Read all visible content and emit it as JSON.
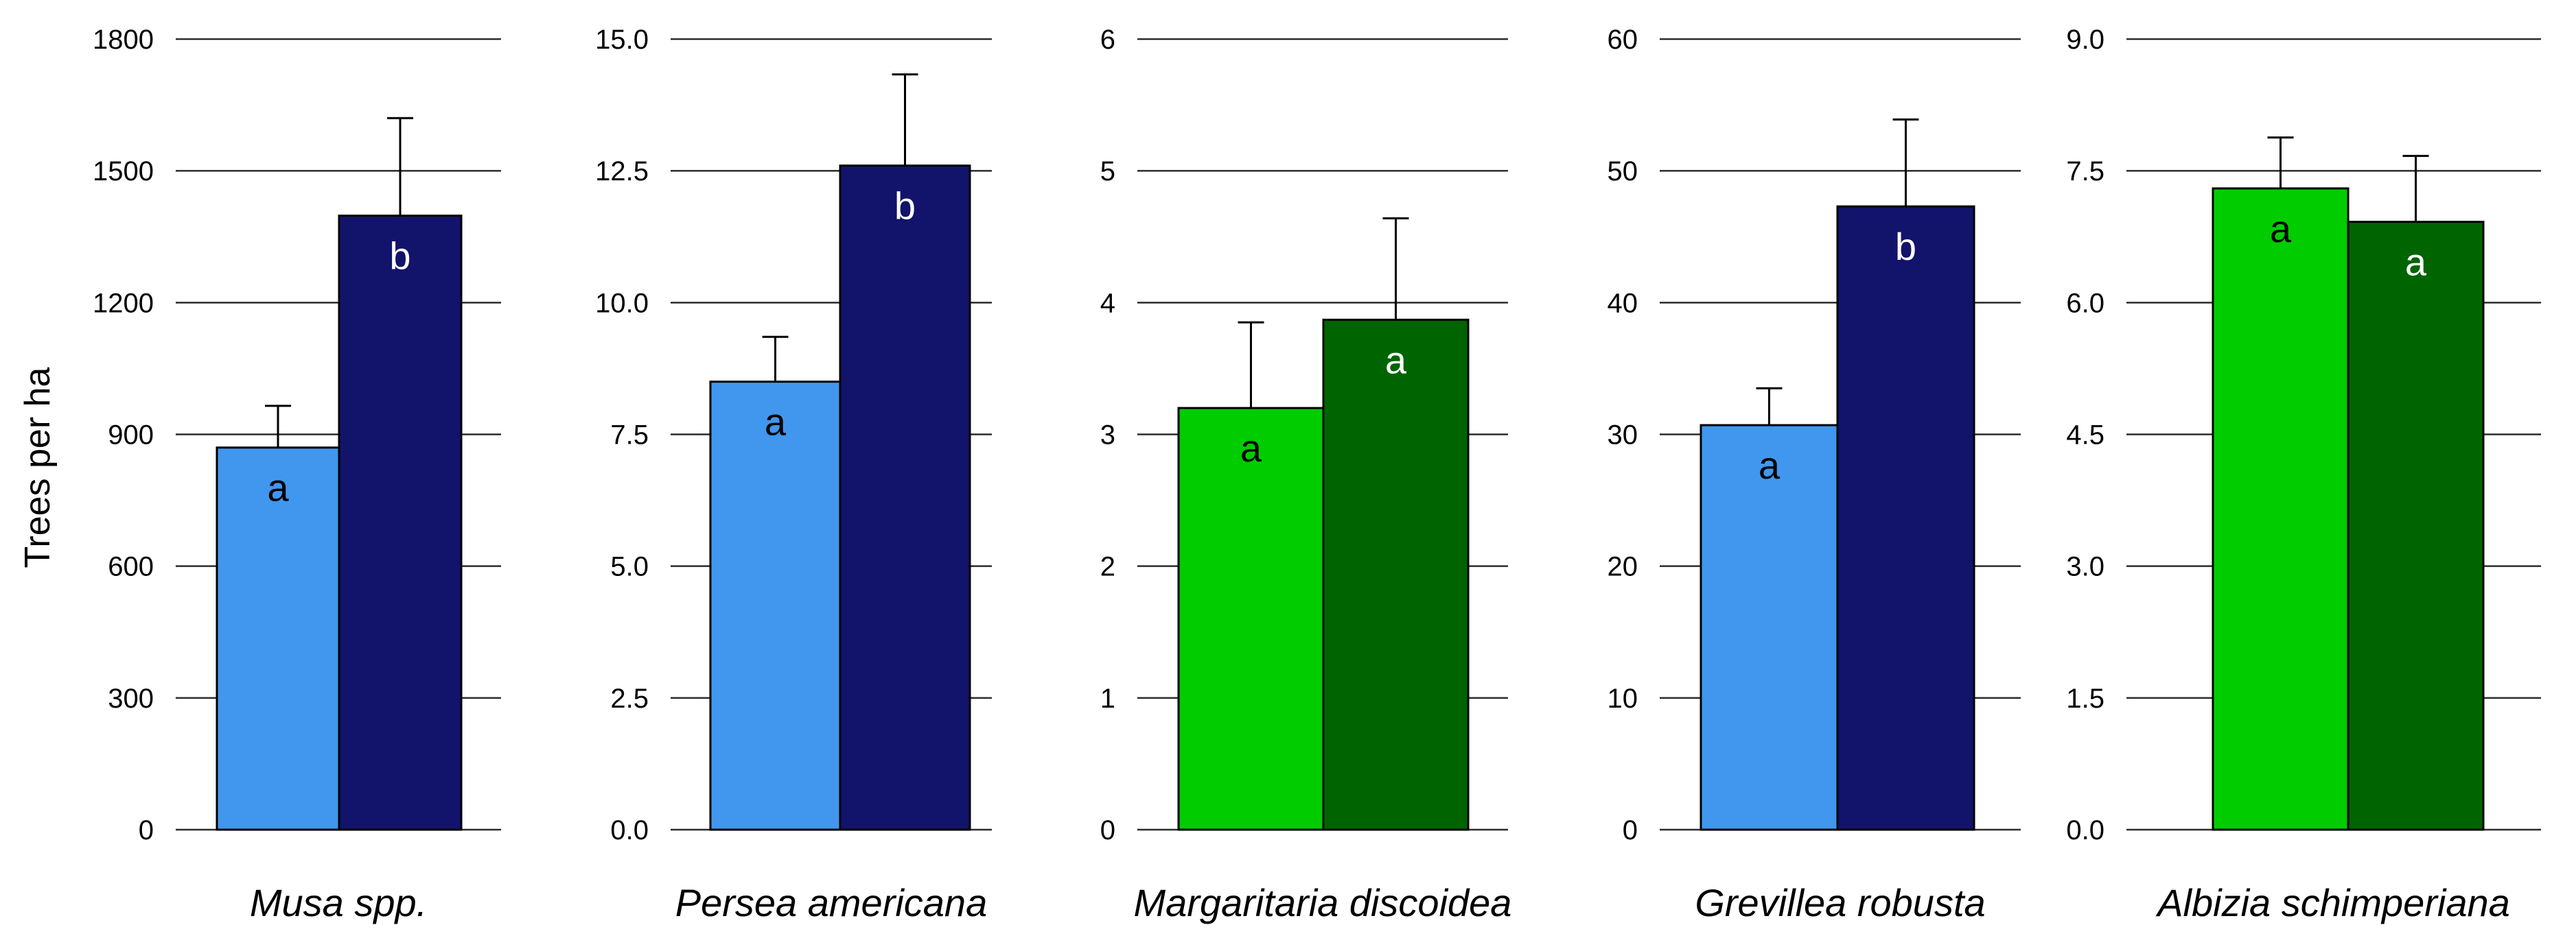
{
  "chart_data": [
    {
      "type": "bar",
      "title": "Musa spp.",
      "ylabel": "Trees per ha",
      "xlabel": "",
      "ylim": [
        0,
        1800
      ],
      "yticks": [
        "0",
        "300",
        "600",
        "900",
        "1200",
        "1500",
        "1800"
      ],
      "tick_values": [
        0,
        300,
        600,
        900,
        1200,
        1500,
        1800
      ],
      "grid": true,
      "bars": [
        {
          "value": 870,
          "error": 95,
          "color": "#4196ee",
          "label": "a",
          "label_color": "#000000"
        },
        {
          "value": 1398,
          "error": 222,
          "color": "#12136b",
          "label": "b",
          "label_color": "#ffffff"
        }
      ]
    },
    {
      "type": "bar",
      "title": "Persea americana",
      "ylabel": "",
      "xlabel": "",
      "ylim": [
        0,
        15
      ],
      "yticks": [
        "0.0",
        "2.5",
        "5.0",
        "7.5",
        "10.0",
        "12.5",
        "15.0"
      ],
      "tick_values": [
        0,
        2.5,
        5,
        7.5,
        10,
        12.5,
        15
      ],
      "grid": true,
      "bars": [
        {
          "value": 8.5,
          "error": 0.85,
          "color": "#4196ee",
          "label": "a",
          "label_color": "#000000"
        },
        {
          "value": 12.6,
          "error": 1.73,
          "color": "#12136b",
          "label": "b",
          "label_color": "#ffffff"
        }
      ]
    },
    {
      "type": "bar",
      "title": "Margaritaria discoidea",
      "ylabel": "",
      "xlabel": "",
      "ylim": [
        0,
        6
      ],
      "yticks": [
        "0",
        "1",
        "2",
        "3",
        "4",
        "5",
        "6"
      ],
      "tick_values": [
        0,
        1,
        2,
        3,
        4,
        5,
        6
      ],
      "grid": true,
      "bars": [
        {
          "value": 3.2,
          "error": 0.65,
          "color": "#00cc00",
          "label": "a",
          "label_color": "#000000"
        },
        {
          "value": 3.87,
          "error": 0.77,
          "color": "#006400",
          "label": "a",
          "label_color": "#ffffff"
        }
      ]
    },
    {
      "type": "bar",
      "title": "Grevillea robusta",
      "ylabel": "",
      "xlabel": "",
      "ylim": [
        0,
        60
      ],
      "yticks": [
        "0",
        "10",
        "20",
        "30",
        "40",
        "50",
        "60"
      ],
      "tick_values": [
        0,
        10,
        20,
        30,
        40,
        50,
        60
      ],
      "grid": true,
      "bars": [
        {
          "value": 30.7,
          "error": 2.8,
          "color": "#4196ee",
          "label": "a",
          "label_color": "#000000"
        },
        {
          "value": 47.3,
          "error": 6.6,
          "color": "#12136b",
          "label": "b",
          "label_color": "#ffffff"
        }
      ]
    },
    {
      "type": "bar",
      "title": "Albizia schimperiana",
      "ylabel": "",
      "xlabel": "",
      "ylim": [
        0,
        9
      ],
      "yticks": [
        "0.0",
        "1.5",
        "3.0",
        "4.5",
        "6.0",
        "7.5",
        "9.0"
      ],
      "tick_values": [
        0,
        1.5,
        3,
        4.5,
        6,
        7.5,
        9
      ],
      "grid": true,
      "bars": [
        {
          "value": 7.3,
          "error": 0.58,
          "color": "#00cc00",
          "label": "a",
          "label_color": "#000000"
        },
        {
          "value": 6.92,
          "error": 0.75,
          "color": "#006400",
          "label": "a",
          "label_color": "#ffffff"
        }
      ]
    }
  ]
}
